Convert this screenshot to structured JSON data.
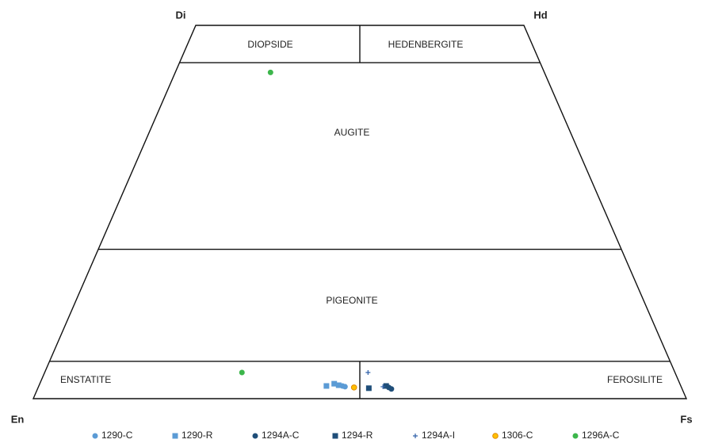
{
  "chart_data": {
    "type": "pyroxene-quadrilateral",
    "corners": {
      "top_left": "Di",
      "top_right": "Hd",
      "bottom_left": "En",
      "bottom_right": "Fs"
    },
    "fields": [
      "DIOPSIDE",
      "HEDENBERGITE",
      "AUGITE",
      "PIGEONITE",
      "ENSTATITE",
      "FEROSILITE"
    ],
    "xlim": [
      0,
      100
    ],
    "ylim": [
      0,
      50
    ],
    "series": [
      {
        "name": "1290-C",
        "color": "#5b9bd5",
        "marker": "circle",
        "x": [
          47.3,
          47.7
        ],
        "y": [
          1.7,
          1.6
        ]
      },
      {
        "name": "1290-R",
        "color": "#5b9bd5",
        "marker": "square",
        "x": [
          44.8,
          46.0,
          46.7
        ],
        "y": [
          1.7,
          2.0,
          1.8
        ]
      },
      {
        "name": "1294A-C",
        "color": "#1f4e79",
        "marker": "circle",
        "x": [
          54.5,
          54.9
        ],
        "y": [
          1.5,
          1.3
        ]
      },
      {
        "name": "1294-R",
        "color": "#1f4e79",
        "marker": "square",
        "x": [
          51.4,
          54.1
        ],
        "y": [
          1.4,
          1.7
        ]
      },
      {
        "name": "1294A-I",
        "color": "#2e5fa8",
        "marker": "plus",
        "x": [
          51.3,
          53.6
        ],
        "y": [
          3.5,
          1.6
        ]
      },
      {
        "name": "1306-C",
        "color": "#ffc000",
        "marker": "ring",
        "x": [
          49.1
        ],
        "y": [
          1.5
        ]
      },
      {
        "name": "1296A-C",
        "color": "#3cb64b",
        "marker": "circle",
        "x": [
          25.8,
          31.3
        ],
        "y": [
          43.7,
          3.5
        ]
      }
    ]
  }
}
